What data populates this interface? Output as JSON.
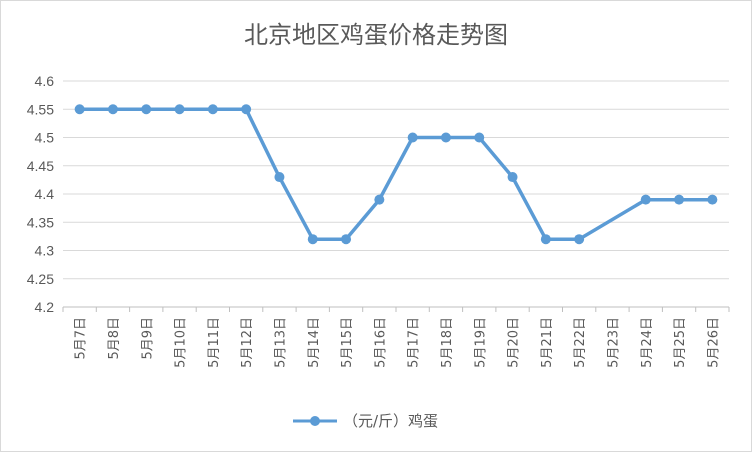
{
  "chart_data": {
    "type": "line",
    "title": "北京地区鸡蛋价格走势图",
    "categories": [
      "5月7日",
      "5月8日",
      "5月9日",
      "5月10日",
      "5月11日",
      "5月12日",
      "5月13日",
      "5月14日",
      "5月15日",
      "5月16日",
      "5月17日",
      "5月18日",
      "5月19日",
      "5月20日",
      "5月21日",
      "5月22日",
      "5月23日",
      "5月24日",
      "5月25日",
      "5月26日"
    ],
    "series": [
      {
        "name": "（元/斤）鸡蛋",
        "color": "#5b9bd5",
        "values": [
          4.55,
          4.55,
          4.55,
          4.55,
          4.55,
          4.55,
          4.43,
          4.32,
          4.32,
          4.39,
          4.5,
          4.5,
          4.5,
          4.43,
          4.32,
          4.32,
          null,
          4.39,
          4.39,
          4.39
        ]
      }
    ],
    "ylim": [
      4.2,
      4.6
    ],
    "yticks": [
      "4.2",
      "4.25",
      "4.3",
      "4.35",
      "4.4",
      "4.45",
      "4.5",
      "4.55",
      "4.6"
    ],
    "grid": true,
    "legend_position": "bottom"
  }
}
